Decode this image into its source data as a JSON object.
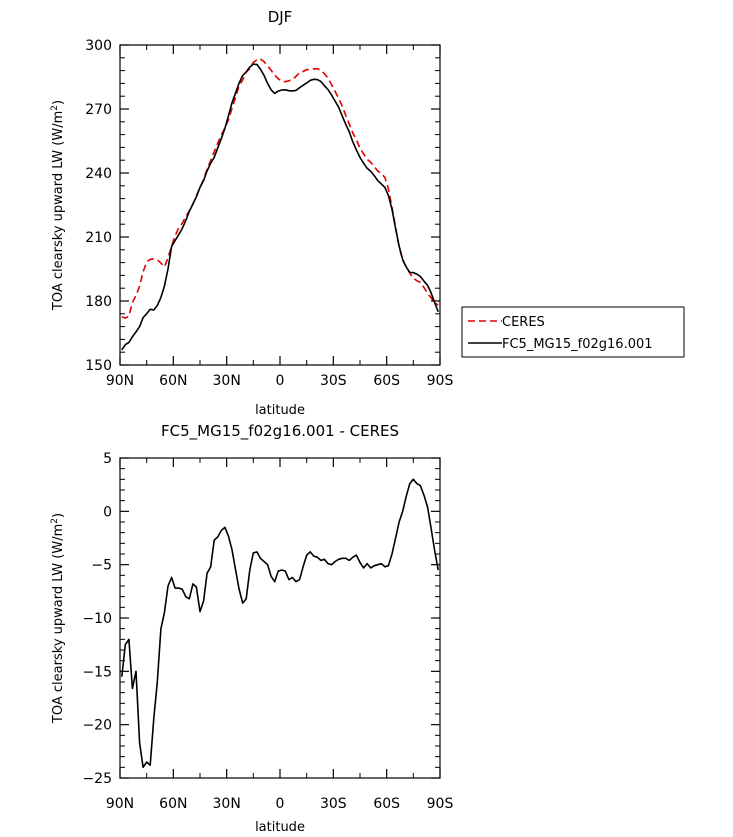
{
  "chart_data": [
    {
      "type": "line",
      "title": "DJF",
      "xlabel": "latitude",
      "ylabel": "TOA clearsky upward LW (W/m²)",
      "ylabel_parts": {
        "main": "TOA clearsky upward LW (W/m",
        "sup": "2",
        "end": ")"
      },
      "xlim": [
        90,
        -90
      ],
      "ylim": [
        150,
        300
      ],
      "x_ticks": [
        90,
        60,
        30,
        0,
        -30,
        -60,
        -90
      ],
      "x_tick_labels": [
        "90N",
        "60N",
        "30N",
        "0",
        "30S",
        "60S",
        "90S"
      ],
      "y_ticks": [
        150,
        180,
        210,
        240,
        270,
        300
      ],
      "y_tick_labels": [
        "150",
        "180",
        "210",
        "240",
        "270",
        "300"
      ],
      "legend": {
        "placement": "right-bottom",
        "entries": [
          "CERES",
          "FC5_MG15_f02g16.001"
        ]
      },
      "series": [
        {
          "name": "CERES",
          "color": "#e00000",
          "dash": "dashed",
          "x": [
            89,
            87,
            85,
            83,
            81,
            79,
            77,
            75,
            73,
            71,
            69,
            67,
            65,
            63,
            61,
            59,
            57,
            55,
            53,
            51,
            49,
            47,
            45,
            43,
            41,
            39,
            37,
            35,
            33,
            31,
            29,
            27,
            25,
            23,
            21,
            19,
            17,
            15,
            13,
            11,
            9,
            7,
            5,
            3,
            1,
            -1,
            -3,
            -5,
            -7,
            -9,
            -11,
            -13,
            -15,
            -17,
            -19,
            -21,
            -23,
            -25,
            -27,
            -29,
            -31,
            -33,
            -35,
            -37,
            -39,
            -41,
            -43,
            -45,
            -47,
            -49,
            -51,
            -53,
            -55,
            -57,
            -59,
            -61,
            -63,
            -65,
            -67,
            -69,
            -71,
            -73,
            -75,
            -77,
            -79,
            -81,
            -83,
            -85,
            -87,
            -89
          ],
          "values": [
            172.6,
            172.0,
            172.9,
            179.3,
            182.6,
            187.0,
            193.7,
            198.3,
            199.5,
            199.8,
            199.3,
            197.8,
            196.0,
            200.2,
            205.8,
            210.5,
            214.3,
            216.4,
            219.5,
            222.3,
            225.5,
            229.3,
            233.2,
            236.9,
            241.8,
            245.9,
            249.9,
            254.1,
            257.8,
            261.1,
            264.9,
            270.3,
            275.5,
            280.9,
            283.6,
            287.3,
            289.0,
            291.8,
            293.0,
            293.5,
            292.2,
            290.2,
            288.2,
            285.9,
            284.2,
            283.0,
            282.8,
            283.2,
            283.8,
            285.3,
            287.1,
            287.6,
            288.5,
            288.4,
            288.8,
            288.9,
            288.2,
            286.6,
            284.5,
            281.4,
            278.2,
            275.0,
            271.3,
            266.9,
            262.9,
            258.7,
            255.5,
            251.6,
            249.0,
            246.4,
            245.0,
            243.1,
            240.9,
            239.8,
            237.9,
            232.6,
            223.9,
            214.4,
            205.5,
            199.1,
            196.1,
            193.1,
            190.7,
            189.5,
            188.7,
            186.3,
            183.6,
            181.5,
            179.2,
            178.1
          ]
        },
        {
          "name": "FC5_MG15_f02g16.001",
          "color": "#000000",
          "dash": "solid",
          "x": [
            89,
            87,
            85,
            83,
            81,
            79,
            77,
            75,
            73,
            71,
            69,
            67,
            65,
            63,
            61,
            59,
            57,
            55,
            53,
            51,
            49,
            47,
            45,
            43,
            41,
            39,
            37,
            35,
            33,
            31,
            29,
            27,
            25,
            23,
            21,
            19,
            17,
            15,
            13,
            11,
            9,
            7,
            5,
            3,
            1,
            -1,
            -3,
            -5,
            -7,
            -9,
            -11,
            -13,
            -15,
            -17,
            -19,
            -21,
            -23,
            -25,
            -27,
            -29,
            -31,
            -33,
            -35,
            -37,
            -39,
            -41,
            -43,
            -45,
            -47,
            -49,
            -51,
            -53,
            -55,
            -57,
            -59,
            -61,
            -63,
            -65,
            -67,
            -69,
            -71,
            -73,
            -75,
            -77,
            -79,
            -81,
            -83,
            -85,
            -87,
            -89
          ],
          "values": [
            157.1,
            159.5,
            160.6,
            163.2,
            165.5,
            168.0,
            172.2,
            174.1,
            176.1,
            175.8,
            177.9,
            181.7,
            187.0,
            195.0,
            205.6,
            208.3,
            211.1,
            214.0,
            217.8,
            222.0,
            225.4,
            228.9,
            233.3,
            236.5,
            241.0,
            244.6,
            247.3,
            251.8,
            256.1,
            260.9,
            266.7,
            272.9,
            277.6,
            282.2,
            285.7,
            287.4,
            289.7,
            291.0,
            290.9,
            288.7,
            285.8,
            282.0,
            279.0,
            277.3,
            278.4,
            278.9,
            279.0,
            278.6,
            278.5,
            278.7,
            280.0,
            281.1,
            282.2,
            283.4,
            283.9,
            283.8,
            282.9,
            280.9,
            279.1,
            276.5,
            273.7,
            270.8,
            266.7,
            262.8,
            259.2,
            254.5,
            250.8,
            247.3,
            244.6,
            242.2,
            240.8,
            238.8,
            236.4,
            234.9,
            233.2,
            229.5,
            223.0,
            214.0,
            205.8,
            199.4,
            196.0,
            193.4,
            193.3,
            192.6,
            191.5,
            189.3,
            187.3,
            183.8,
            179.2,
            174.9
          ]
        }
      ]
    },
    {
      "type": "line",
      "title": "FC5_MG15_f02g16.001 - CERES",
      "xlabel": "latitude",
      "ylabel": "TOA clearsky upward LW (W/m²)",
      "ylabel_parts": {
        "main": "TOA clearsky upward LW (W/m",
        "sup": "2",
        "end": ")"
      },
      "xlim": [
        90,
        -90
      ],
      "ylim": [
        -25,
        5
      ],
      "x_ticks": [
        90,
        60,
        30,
        0,
        -30,
        -60,
        -90
      ],
      "x_tick_labels": [
        "90N",
        "60N",
        "30N",
        "0",
        "30S",
        "60S",
        "90S"
      ],
      "y_ticks": [
        -25,
        -20,
        -15,
        -10,
        -5,
        0,
        5
      ],
      "y_tick_labels": [
        "−25",
        "−20",
        "−15",
        "−10",
        "−5",
        "0",
        "5"
      ],
      "series": [
        {
          "color": "#000000",
          "dash": "solid",
          "x": [
            89,
            87,
            85,
            83,
            81,
            79,
            77,
            75,
            73,
            71,
            69,
            67,
            65,
            63,
            61,
            59,
            57,
            55,
            53,
            51,
            49,
            47,
            45,
            43,
            41,
            39,
            37,
            35,
            33,
            31,
            29,
            27,
            25,
            23,
            21,
            19,
            17,
            15,
            13,
            11,
            9,
            7,
            5,
            3,
            1,
            -1,
            -3,
            -5,
            -7,
            -9,
            -11,
            -13,
            -15,
            -17,
            -19,
            -21,
            -23,
            -25,
            -27,
            -29,
            -31,
            -33,
            -35,
            -37,
            -39,
            -41,
            -43,
            -45,
            -47,
            -49,
            -51,
            -53,
            -55,
            -57,
            -59,
            -61,
            -63,
            -65,
            -67,
            -69,
            -71,
            -73,
            -75,
            -77,
            -79,
            -81,
            -83,
            -85,
            -87,
            -89
          ],
          "values": [
            -15.5,
            -12.5,
            -12.0,
            -16.6,
            -15.0,
            -21.7,
            -24.0,
            -23.5,
            -23.8,
            -19.4,
            -16.0,
            -11.0,
            -9.5,
            -7.0,
            -6.2,
            -7.2,
            -7.2,
            -7.3,
            -8.0,
            -8.2,
            -6.8,
            -7.1,
            -9.4,
            -8.4,
            -5.8,
            -5.2,
            -2.7,
            -2.4,
            -1.8,
            -1.5,
            -2.3,
            -3.6,
            -5.5,
            -7.3,
            -8.6,
            -8.2,
            -5.5,
            -3.9,
            -3.8,
            -4.4,
            -4.7,
            -5.0,
            -6.1,
            -6.6,
            -5.6,
            -5.5,
            -5.6,
            -6.4,
            -6.2,
            -6.6,
            -6.4,
            -5.2,
            -4.1,
            -3.8,
            -4.2,
            -4.3,
            -4.6,
            -4.5,
            -4.9,
            -5.0,
            -4.7,
            -4.5,
            -4.4,
            -4.4,
            -4.6,
            -4.3,
            -4.1,
            -4.8,
            -5.3,
            -4.9,
            -5.3,
            -5.1,
            -5.0,
            -4.9,
            -5.2,
            -5.1,
            -4.0,
            -2.5,
            -1.0,
            0.0,
            1.4,
            2.6,
            3.0,
            2.6,
            2.4,
            1.5,
            0.4,
            -1.6,
            -3.7,
            -5.5
          ]
        }
      ]
    }
  ]
}
